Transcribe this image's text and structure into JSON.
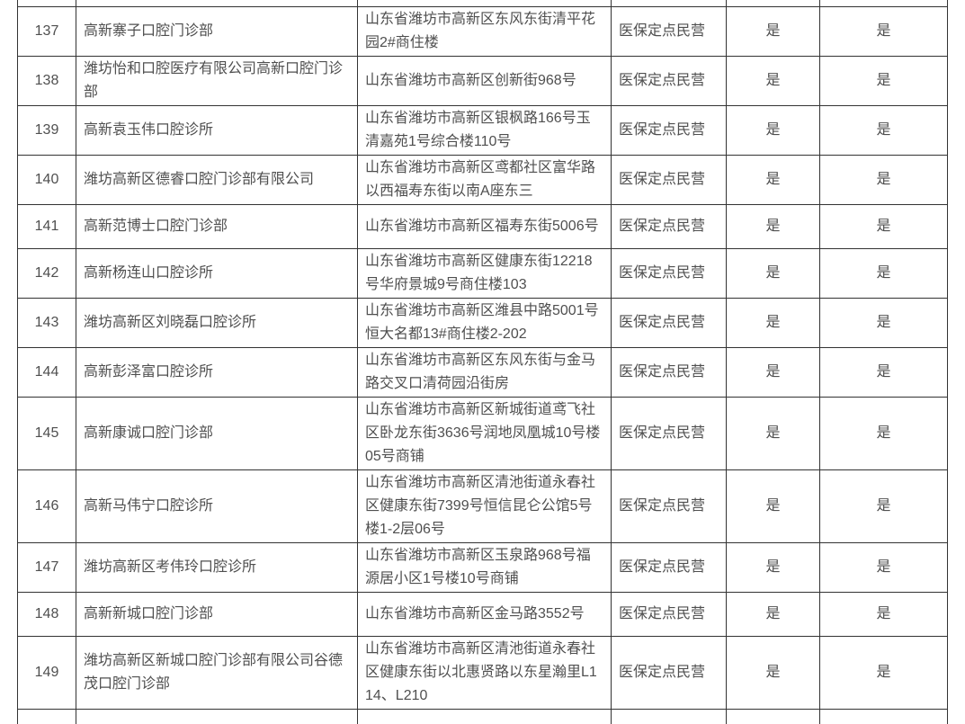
{
  "colors": {
    "border": "#333333",
    "text": "#4f4f4f",
    "background": "#ffffff"
  },
  "table": {
    "rows": [
      {
        "no": "137",
        "name": "高新寨子口腔门诊部",
        "address": "山东省潍坊市高新区东风东街清平花园2#商住楼",
        "category": "医保定点民营",
        "flag1": "是",
        "flag2": "是"
      },
      {
        "no": "138",
        "name": "潍坊怡和口腔医疗有限公司高新口腔门诊部",
        "address": "山东省潍坊市高新区创新街968号",
        "category": "医保定点民营",
        "flag1": "是",
        "flag2": "是"
      },
      {
        "no": "139",
        "name": "高新袁玉伟口腔诊所",
        "address": "山东省潍坊市高新区银枫路166号玉清嘉苑1号综合楼110号",
        "category": "医保定点民营",
        "flag1": "是",
        "flag2": "是"
      },
      {
        "no": "140",
        "name": "潍坊高新区德睿口腔门诊部有限公司",
        "address": "山东省潍坊市高新区鸢都社区富华路以西福寿东街以南A座东三",
        "category": "医保定点民营",
        "flag1": "是",
        "flag2": "是"
      },
      {
        "no": "141",
        "name": "高新范博士口腔门诊部",
        "address": "山东省潍坊市高新区福寿东街5006号",
        "category": "医保定点民营",
        "flag1": "是",
        "flag2": "是"
      },
      {
        "no": "142",
        "name": "高新杨连山口腔诊所",
        "address": "山东省潍坊市高新区健康东街12218号华府景城9号商住楼103",
        "category": "医保定点民营",
        "flag1": "是",
        "flag2": "是"
      },
      {
        "no": "143",
        "name": "潍坊高新区刘晓磊口腔诊所",
        "address": "山东省潍坊市高新区潍县中路5001号恒大名都13#商住楼2-202",
        "category": "医保定点民营",
        "flag1": "是",
        "flag2": "是"
      },
      {
        "no": "144",
        "name": "高新彭泽富口腔诊所",
        "address": "山东省潍坊市高新区东风东街与金马路交叉口清荷园沿街房",
        "category": "医保定点民营",
        "flag1": "是",
        "flag2": "是"
      },
      {
        "no": "145",
        "name": "高新康诚口腔门诊部",
        "address": "山东省潍坊市高新区新城街道鸢飞社区卧龙东街3636号润地凤凰城10号楼05号商铺",
        "category": "医保定点民营",
        "flag1": "是",
        "flag2": "是"
      },
      {
        "no": "146",
        "name": "高新马伟宁口腔诊所",
        "address": "山东省潍坊市高新区清池街道永春社区健康东街7399号恒信昆仑公馆5号楼1-2层06号",
        "category": "医保定点民营",
        "flag1": "是",
        "flag2": "是"
      },
      {
        "no": "147",
        "name": "潍坊高新区考伟玲口腔诊所",
        "address": "山东省潍坊市高新区玉泉路968号福源居小区1号楼10号商铺",
        "category": "医保定点民营",
        "flag1": "是",
        "flag2": "是"
      },
      {
        "no": "148",
        "name": "高新新城口腔门诊部",
        "address": "山东省潍坊市高新区金马路3552号",
        "category": "医保定点民营",
        "flag1": "是",
        "flag2": "是"
      },
      {
        "no": "149",
        "name": "潍坊高新区新城口腔门诊部有限公司谷德茂口腔门诊部",
        "address": "山东省潍坊市高新区清池街道永春社区健康东街以北惠贤路以东星瀚里L114、L210",
        "category": "医保定点民营",
        "flag1": "是",
        "flag2": "是"
      }
    ]
  }
}
